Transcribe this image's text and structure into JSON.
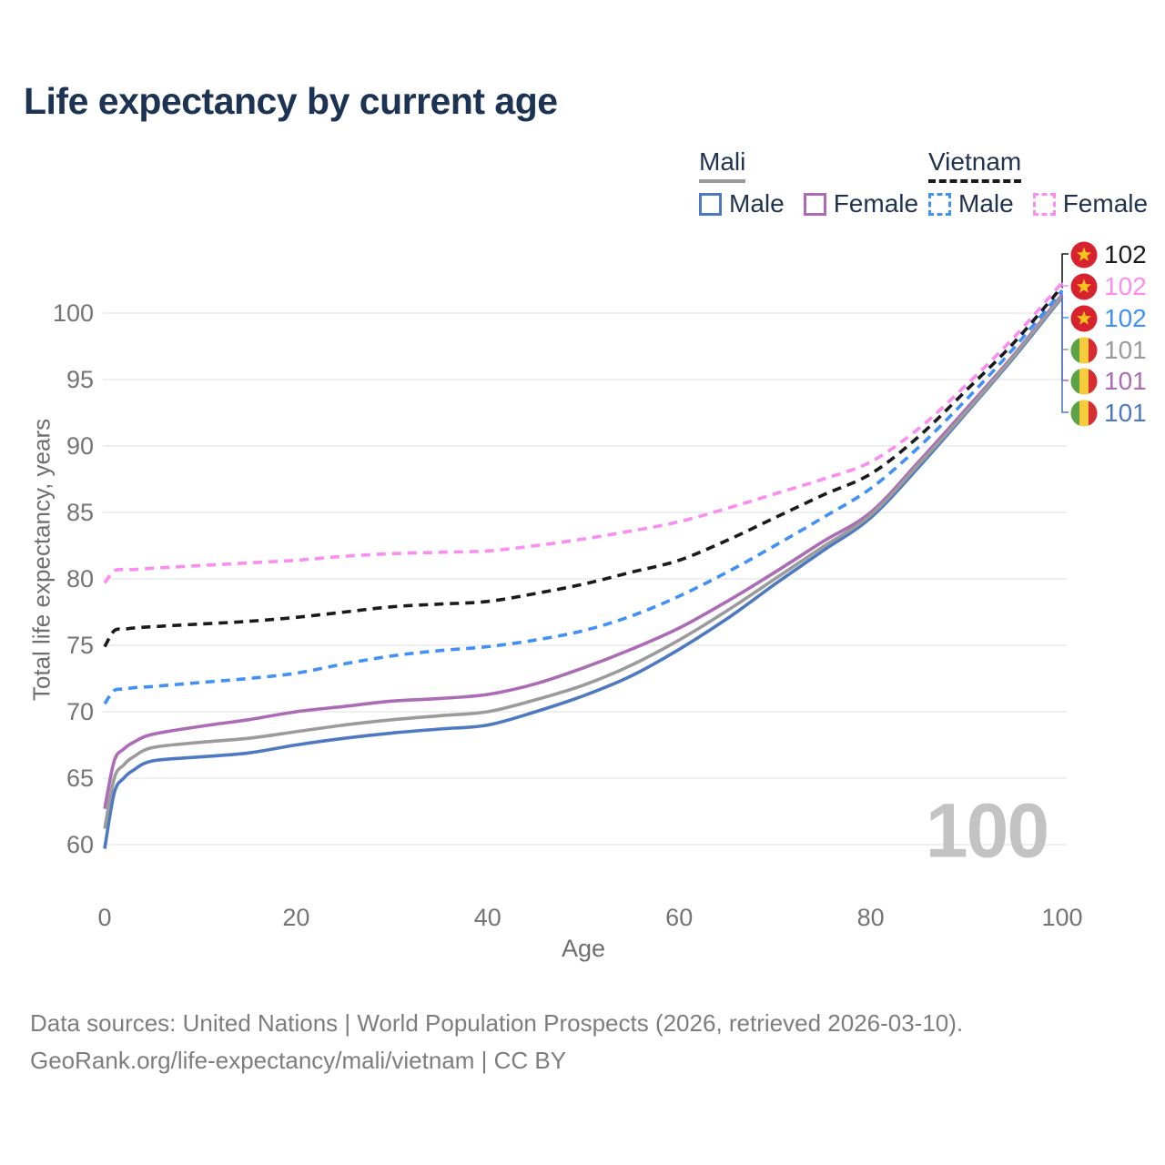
{
  "title": "Life expectancy by current age",
  "watermark": "100",
  "legend": {
    "groups": [
      {
        "label": "Mali",
        "underline_color": "#9a9a9a",
        "underline_style": "solid",
        "items": [
          {
            "label": "Male",
            "color": "#4d79c3",
            "dashed": false
          },
          {
            "label": "Female",
            "color": "#ab6bb5",
            "dashed": false
          }
        ]
      },
      {
        "label": "Vietnam",
        "underline_color": "#1a1a1a",
        "underline_style": "dashed",
        "items": [
          {
            "label": "Male",
            "color": "#4090f7",
            "dashed": true
          },
          {
            "label": "Female",
            "color": "#fb8cf1",
            "dashed": true
          }
        ]
      }
    ]
  },
  "chart_data": {
    "type": "line",
    "title": "Life expectancy by current age",
    "xlabel": "Age",
    "ylabel": "Total life expectancy, years",
    "xlim": [
      0,
      100
    ],
    "ylim": [
      57.5,
      103
    ],
    "xticks": [
      0,
      20,
      40,
      60,
      80,
      100
    ],
    "yticks": [
      60,
      65,
      70,
      75,
      80,
      85,
      90,
      95,
      100
    ],
    "grid": "horizontal-only",
    "legend_position": "top-right",
    "x": [
      0,
      1,
      2,
      3,
      5,
      10,
      15,
      20,
      25,
      30,
      35,
      40,
      45,
      50,
      55,
      60,
      65,
      70,
      75,
      80,
      85,
      90,
      95,
      100
    ],
    "series": [
      {
        "name": "Vietnam",
        "country": "Vietnam",
        "sex": "all",
        "color": "#1a1a1a",
        "dash": true,
        "flag": "vietnam",
        "end_label": "102",
        "values": [
          74.9,
          76.1,
          76.2,
          76.3,
          76.4,
          76.6,
          76.8,
          77.1,
          77.5,
          77.9,
          78.1,
          78.3,
          78.9,
          79.6,
          80.5,
          81.4,
          82.9,
          84.6,
          86.3,
          87.9,
          90.7,
          94.2,
          97.8,
          102.0
        ]
      },
      {
        "name": "Vietnam Female",
        "country": "Vietnam",
        "sex": "female",
        "color": "#fb8cf1",
        "dash": true,
        "flag": "vietnam",
        "end_label": "102",
        "values": [
          79.7,
          80.6,
          80.7,
          80.7,
          80.8,
          81.0,
          81.2,
          81.4,
          81.7,
          81.9,
          82.0,
          82.1,
          82.5,
          83.0,
          83.6,
          84.3,
          85.3,
          86.4,
          87.5,
          88.8,
          91.3,
          94.6,
          98.2,
          102.3
        ]
      },
      {
        "name": "Vietnam Male",
        "country": "Vietnam",
        "sex": "male",
        "color": "#4090f7",
        "dash": true,
        "flag": "vietnam",
        "end_label": "102",
        "values": [
          70.6,
          71.6,
          71.7,
          71.8,
          71.9,
          72.2,
          72.5,
          72.9,
          73.6,
          74.2,
          74.6,
          74.9,
          75.4,
          76.1,
          77.2,
          78.7,
          80.5,
          82.5,
          84.6,
          86.8,
          89.9,
          93.5,
          97.4,
          101.7
        ]
      },
      {
        "name": "Mali",
        "country": "Mali",
        "sex": "all",
        "color": "#9b9b9b",
        "dash": false,
        "flag": "mali",
        "end_label": "101",
        "values": [
          61.2,
          65.0,
          66.0,
          66.6,
          67.3,
          67.7,
          68.0,
          68.5,
          69.0,
          69.4,
          69.7,
          70.0,
          70.9,
          72.0,
          73.5,
          75.4,
          77.6,
          80.0,
          82.4,
          84.8,
          88.6,
          92.6,
          96.8,
          101.3
        ]
      },
      {
        "name": "Mali Female",
        "country": "Mali",
        "sex": "female",
        "color": "#ab6bb5",
        "dash": false,
        "flag": "mali",
        "end_label": "101",
        "values": [
          62.7,
          66.3,
          67.2,
          67.7,
          68.3,
          68.9,
          69.4,
          70.0,
          70.4,
          70.8,
          71.0,
          71.3,
          72.1,
          73.3,
          74.7,
          76.3,
          78.3,
          80.5,
          82.8,
          85.0,
          88.8,
          92.8,
          96.9,
          101.4
        ]
      },
      {
        "name": "Mali Male",
        "country": "Mali",
        "sex": "male",
        "color": "#4d79c3",
        "dash": false,
        "flag": "mali",
        "end_label": "101",
        "values": [
          59.7,
          63.9,
          65.0,
          65.6,
          66.3,
          66.6,
          66.9,
          67.5,
          68.0,
          68.4,
          68.7,
          69.0,
          70.0,
          71.2,
          72.7,
          74.7,
          77.0,
          79.6,
          82.1,
          84.6,
          88.4,
          92.5,
          96.7,
          101.2
        ]
      }
    ]
  },
  "footer": {
    "line1": "Data sources: United Nations | World Population Prospects (2026, retrieved 2026-03-10).",
    "line2": "GeoRank.org/life-expectancy/mali/vietnam | CC BY"
  }
}
